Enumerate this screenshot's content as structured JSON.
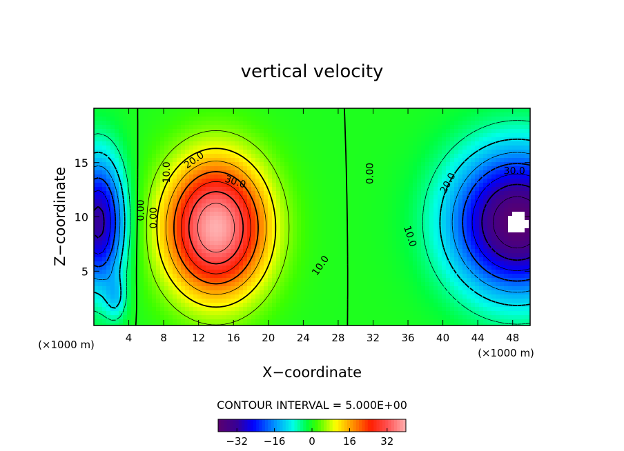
{
  "chart_data": {
    "type": "contour",
    "title": "vertical velocity",
    "xlabel": "X−coordinate",
    "ylabel": "Z−coordinate",
    "x_unit_left": "(×1000 m)",
    "x_unit_right": "(×1000 m)",
    "xlim": [
      0,
      50
    ],
    "ylim": [
      0,
      20
    ],
    "x_ticks": [
      4,
      8,
      12,
      16,
      20,
      24,
      28,
      32,
      36,
      40,
      44,
      48
    ],
    "y_ticks": [
      5,
      10,
      15
    ],
    "contour_interval_label": "CONTOUR INTERVAL = 5.000E+00",
    "colorbar": {
      "ticks": [
        -32,
        -16,
        0,
        16,
        32
      ],
      "range": [
        -40,
        40
      ]
    },
    "contour_labels": [
      {
        "text": "0.00",
        "x": 6.9,
        "y": 9.9,
        "rot": -90
      },
      {
        "text": "0.00",
        "x": 5.4,
        "y": 10.6,
        "rot": -90
      },
      {
        "text": "10.0",
        "x": 8.4,
        "y": 14.1,
        "rot": -90
      },
      {
        "text": "20.0",
        "x": 11.5,
        "y": 15.2,
        "rot": -35
      },
      {
        "text": "30.0",
        "x": 16.2,
        "y": 13.2,
        "rot": 18
      },
      {
        "text": "10.0",
        "x": 26.0,
        "y": 5.5,
        "rot": -55
      },
      {
        "text": "0.00",
        "x": 31.7,
        "y": 14.0,
        "rot": -90
      },
      {
        "text": "10.0",
        "x": 36.2,
        "y": 8.2,
        "rot": 72
      },
      {
        "text": "20.0",
        "x": 40.6,
        "y": 13.1,
        "rot": -62
      },
      {
        "text": "30.0",
        "x": 48.2,
        "y": 14.2,
        "rot": 0
      }
    ],
    "features": {
      "updraft_max": {
        "x": 14,
        "y": 9,
        "value": 40
      },
      "downdraft_right": {
        "x": 48.5,
        "y": 9.5,
        "value": -40
      },
      "downdraft_left": {
        "x": 0.5,
        "y": 9.5,
        "value": -32
      }
    }
  }
}
